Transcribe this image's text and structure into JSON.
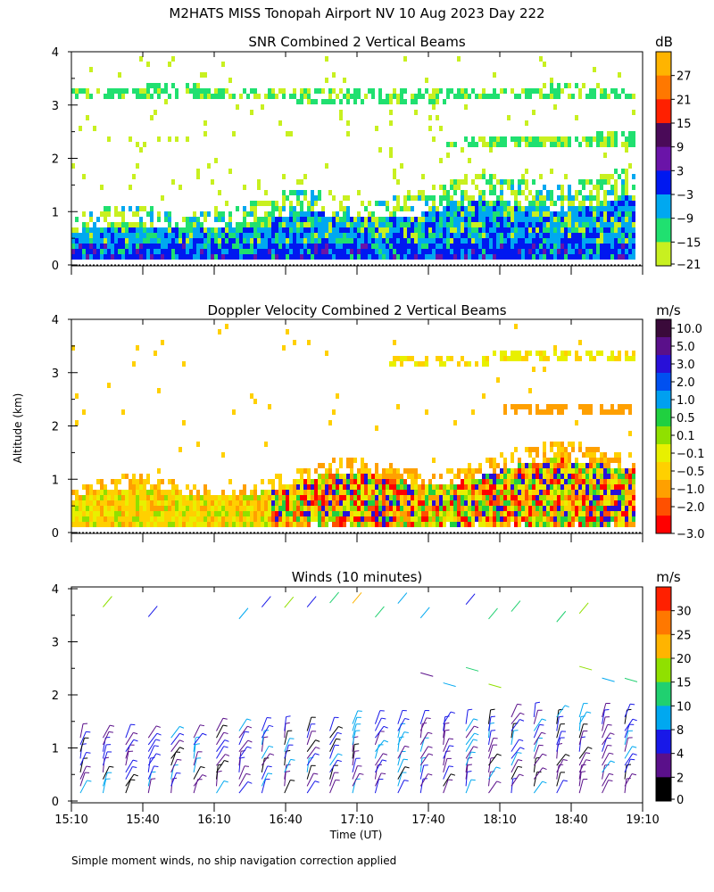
{
  "title": "M2HATS MISS Tonopah Airport NV  10 Aug 2023 Day 222",
  "footnote": "Simple moment winds, no ship navigation correction applied",
  "ylabel": "Altitude (km)",
  "xlabel": "Time (UT)",
  "colors": {
    "axis": "#000000",
    "background": "#ffffff"
  },
  "chart_data": [
    {
      "type": "heatmap",
      "title": "SNR Combined 2 Vertical Beams",
      "units": "dB",
      "ylim": [
        0,
        4
      ],
      "yticks": [
        "0",
        "1",
        "2",
        "3",
        "4"
      ],
      "x_range": [
        "15:10",
        "19:10"
      ],
      "colorbar": {
        "labels": [
          "27",
          "21",
          "15",
          "9",
          "3",
          "−3",
          "−9",
          "−15",
          "−21"
        ],
        "colors": [
          "#ffb400",
          "#ff7800",
          "#ff2000",
          "#4a0a58",
          "#6a14a8",
          "#0018f0",
          "#00a8f0",
          "#20e070",
          "#c8f020"
        ]
      }
    },
    {
      "type": "heatmap",
      "title": "Doppler Velocity Combined 2 Vertical Beams",
      "units": "m/s",
      "ylim": [
        0,
        4
      ],
      "yticks": [
        "0",
        "1",
        "2",
        "3",
        "4"
      ],
      "x_range": [
        "15:10",
        "19:10"
      ],
      "colorbar": {
        "labels": [
          "10.0",
          "5.0",
          "3.0",
          "2.0",
          "1.0",
          "0.5",
          "0.1",
          "−0.1",
          "−0.5",
          "−1.0",
          "−2.0",
          "−3.0"
        ],
        "colors": [
          "#3a0a3a",
          "#5a108a",
          "#2810d8",
          "#0050f0",
          "#00a0f0",
          "#20d040",
          "#90e000",
          "#e8f000",
          "#ffd000",
          "#ffa000",
          "#ff5000",
          "#ff0000"
        ]
      }
    },
    {
      "type": "scatter",
      "title": "Winds (10 minutes)",
      "units": "m/s",
      "ylim": [
        0,
        4
      ],
      "yticks": [
        "0",
        "1",
        "2",
        "3",
        "4"
      ],
      "x_range": [
        "15:10",
        "19:10"
      ],
      "xtick_labels": [
        "15:10",
        "15:40",
        "16:10",
        "16:40",
        "17:10",
        "17:40",
        "18:10",
        "18:40",
        "19:10"
      ],
      "colorbar": {
        "labels": [
          "30",
          "25",
          "20",
          "15",
          "10",
          "8",
          "4",
          "2",
          "0"
        ],
        "colors": [
          "#ff2000",
          "#ff7800",
          "#ffb400",
          "#90e000",
          "#20d070",
          "#00a8f0",
          "#1818e8",
          "#5a108a",
          "#000000"
        ]
      }
    }
  ]
}
